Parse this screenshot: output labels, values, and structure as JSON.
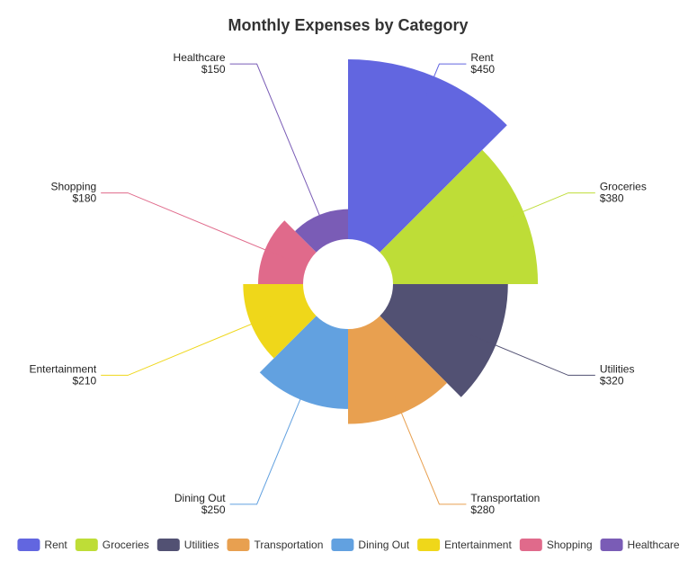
{
  "chart_data": {
    "type": "nightingale-rose",
    "title": "Monthly Expenses by Category",
    "currency_prefix": "$",
    "categories": [
      "Rent",
      "Groceries",
      "Utilities",
      "Transportation",
      "Dining Out",
      "Entertainment",
      "Shopping",
      "Healthcare"
    ],
    "values": [
      450,
      380,
      320,
      280,
      250,
      210,
      180,
      150
    ],
    "value_labels": [
      "$450",
      "$380",
      "$320",
      "$280",
      "$250",
      "$210",
      "$180",
      "$150"
    ],
    "colors": [
      "#6266e0",
      "#bedd37",
      "#525173",
      "#e8a050",
      "#62a1e0",
      "#efd71a",
      "#e06a8b",
      "#7a5cb6"
    ],
    "legend": {
      "position": "bottom",
      "items": [
        "Rent",
        "Groceries",
        "Utilities",
        "Transportation",
        "Dining Out",
        "Entertainment",
        "Shopping",
        "Healthcare"
      ]
    }
  }
}
